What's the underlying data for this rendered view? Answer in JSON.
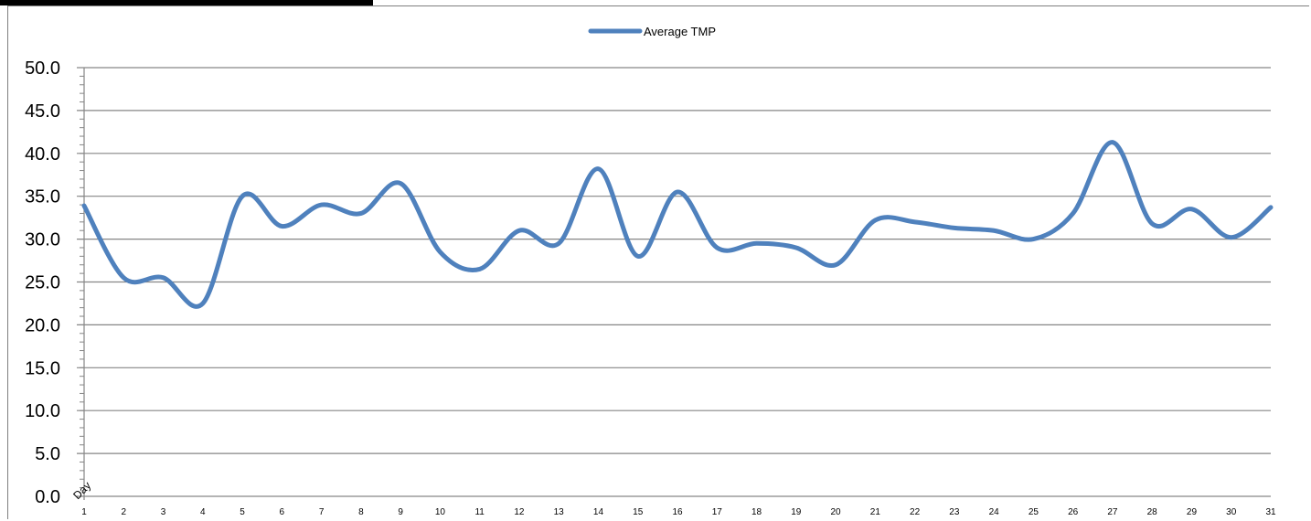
{
  "chart_data": {
    "type": "line",
    "xlabel": "Day",
    "ylabel": "",
    "ylim": [
      0,
      50
    ],
    "ytick_step": 5,
    "y_tick_labels": [
      "0.0",
      "5.0",
      "10.0",
      "15.0",
      "20.0",
      "25.0",
      "30.0",
      "35.0",
      "40.0",
      "45.0",
      "50.0"
    ],
    "categories": [
      "1",
      "2",
      "3",
      "4",
      "5",
      "6",
      "7",
      "8",
      "9",
      "10",
      "11",
      "12",
      "13",
      "14",
      "15",
      "16",
      "17",
      "18",
      "19",
      "20",
      "21",
      "22",
      "23",
      "24",
      "25",
      "26",
      "27",
      "28",
      "29",
      "30",
      "31"
    ],
    "series": [
      {
        "name": "Average TMP",
        "color": "#4f81bd",
        "values": [
          33.9,
          25.5,
          25.5,
          22.5,
          35.0,
          31.5,
          34.0,
          33.0,
          36.5,
          28.5,
          26.5,
          31.0,
          29.5,
          38.2,
          28.0,
          35.5,
          29.0,
          29.5,
          29.0,
          27.0,
          32.2,
          32.0,
          31.3,
          31.0,
          30.0,
          33.0,
          41.3,
          31.8,
          33.5,
          30.2,
          33.7
        ]
      }
    ],
    "legend_position": "top-center",
    "grid": true
  }
}
